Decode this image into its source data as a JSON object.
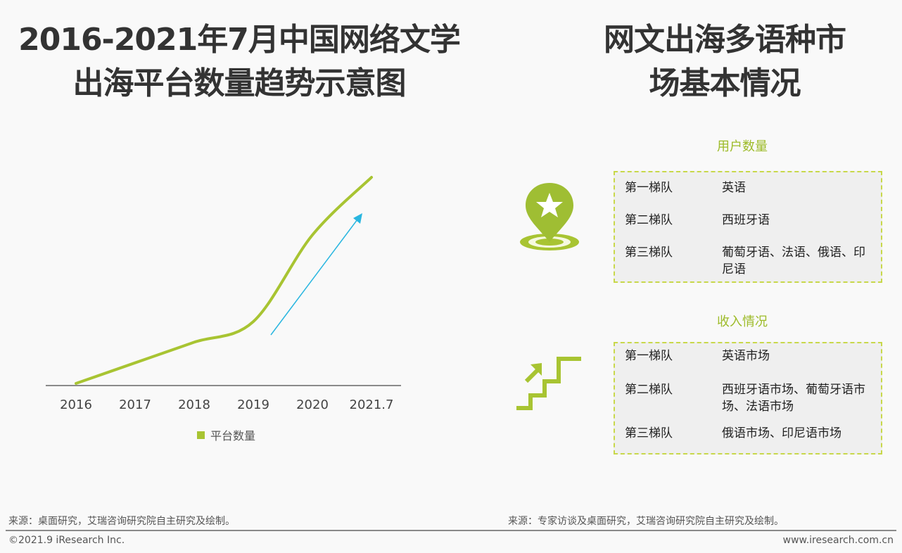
{
  "left_panel": {
    "title_line1": "2016-2021年7月中国网络文学",
    "title_line2": "出海平台数量趋势示意图",
    "source": "来源：桌面研究，艾瑞咨询研究院自主研究及绘制。"
  },
  "right_panel": {
    "title_line1": "网文出海多语种市",
    "title_line2": "场基本情况",
    "source": "来源：专家访谈及桌面研究，艾瑞咨询研究院自主研究及绘制。",
    "user_section": {
      "heading": "用户数量",
      "icon": "map-pin-star-icon",
      "rows": [
        {
          "tier": "第一梯队",
          "value": "英语"
        },
        {
          "tier": "第二梯队",
          "value": "西班牙语"
        },
        {
          "tier": "第三梯队",
          "value": "葡萄牙语、法语、俄语、印尼语"
        }
      ]
    },
    "revenue_section": {
      "heading": "收入情况",
      "icon": "stairs-up-arrow-icon",
      "rows": [
        {
          "tier": "第一梯队",
          "value": "英语市场"
        },
        {
          "tier": "第二梯队",
          "value": "西班牙语市场、葡萄牙语市场、法语市场"
        },
        {
          "tier": "第三梯队",
          "value": "俄语市场、印尼语市场"
        }
      ]
    }
  },
  "footer": {
    "copyright": "©2021.9 iResearch Inc.",
    "website": "www.iresearch.com.cn"
  },
  "colors": {
    "accent_green": "#a8c432",
    "arrow_blue": "#29b6e0",
    "title_text": "#333333",
    "box_border": "#c8d84a"
  },
  "chart_data": {
    "type": "line",
    "title": "2016-2021年7月中国网络文学出海平台数量趋势示意图",
    "categories": [
      "2016",
      "2017",
      "2018",
      "2019",
      "2020",
      "2021.7"
    ],
    "series": [
      {
        "name": "平台数量",
        "values": [
          0,
          10,
          20,
          30,
          72,
          100
        ],
        "color": "#a8c432"
      }
    ],
    "xlabel": "",
    "ylabel": "",
    "y_axis_shown": false,
    "values_note": "Schematic (示意图) — no numeric axis; values are relative estimates",
    "annotations": [
      "upward trend arrow (blue) from 2019 to 2021.7"
    ],
    "legend": {
      "position": "bottom",
      "entries": [
        "平台数量"
      ]
    },
    "grid": false
  }
}
